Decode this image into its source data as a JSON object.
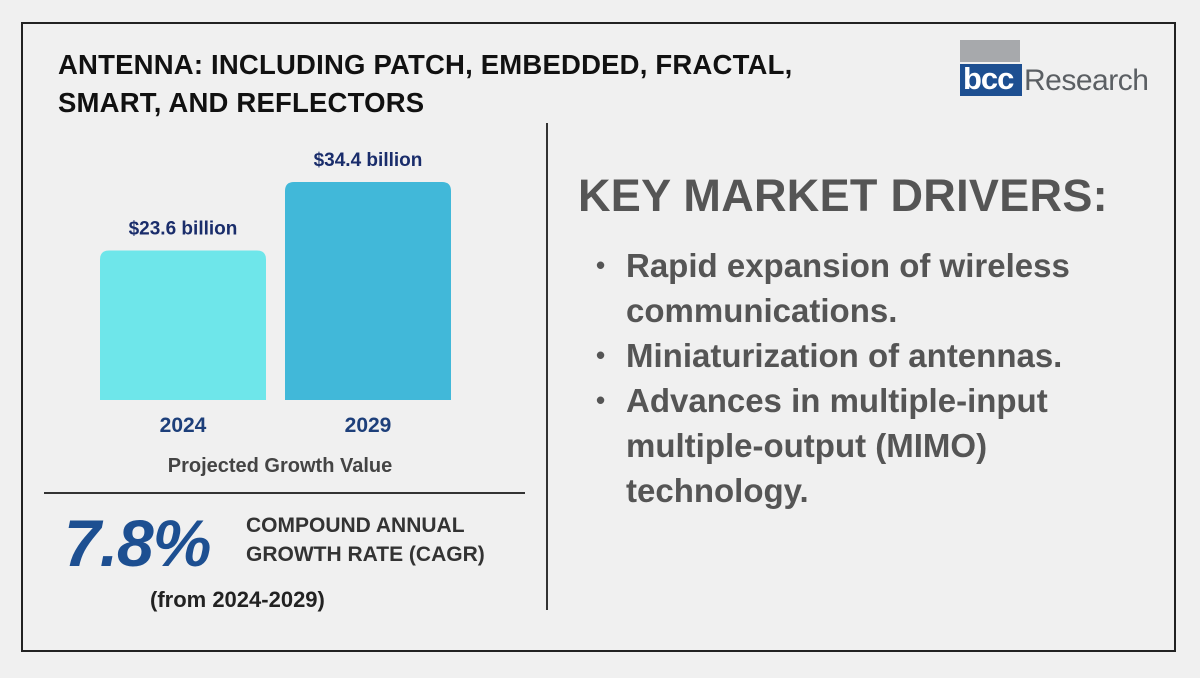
{
  "title_lines": [
    "ANTENNA: INCLUDING PATCH, EMBEDDED, FRACTAL,",
    "SMART, AND REFLECTORS"
  ],
  "logo": {
    "mark_text": "bcc",
    "word_text": "Research",
    "mark_color": "#1d4f91",
    "bar_color": "#a7a9ac",
    "word_color": "#5b5f63"
  },
  "chart_data": {
    "type": "bar",
    "categories": [
      "2024",
      "2029"
    ],
    "values": [
      23.6,
      34.4
    ],
    "data_labels": [
      "$23.6 billion",
      "$34.4 billion"
    ],
    "bar_colors": [
      "#6ee6ea",
      "#41b8d9"
    ],
    "title": "",
    "xlabel": "Projected Growth Value",
    "ylabel": "",
    "ylim": [
      0,
      34.4
    ],
    "grid": false,
    "legend": "none"
  },
  "cagr": {
    "value": "7.8%",
    "label_lines": [
      "COMPOUND ANNUAL",
      "GROWTH RATE (CAGR)"
    ],
    "range": "(from 2024-2029)",
    "value_color": "#1d4f91"
  },
  "drivers": {
    "heading": "KEY MARKET DRIVERS:",
    "bullet_symbol": "•",
    "items": [
      "Rapid expansion of wireless communications.",
      "Miniaturization of antennas.",
      "Advances in multiple-input multiple-output (MIMO) technology."
    ]
  }
}
